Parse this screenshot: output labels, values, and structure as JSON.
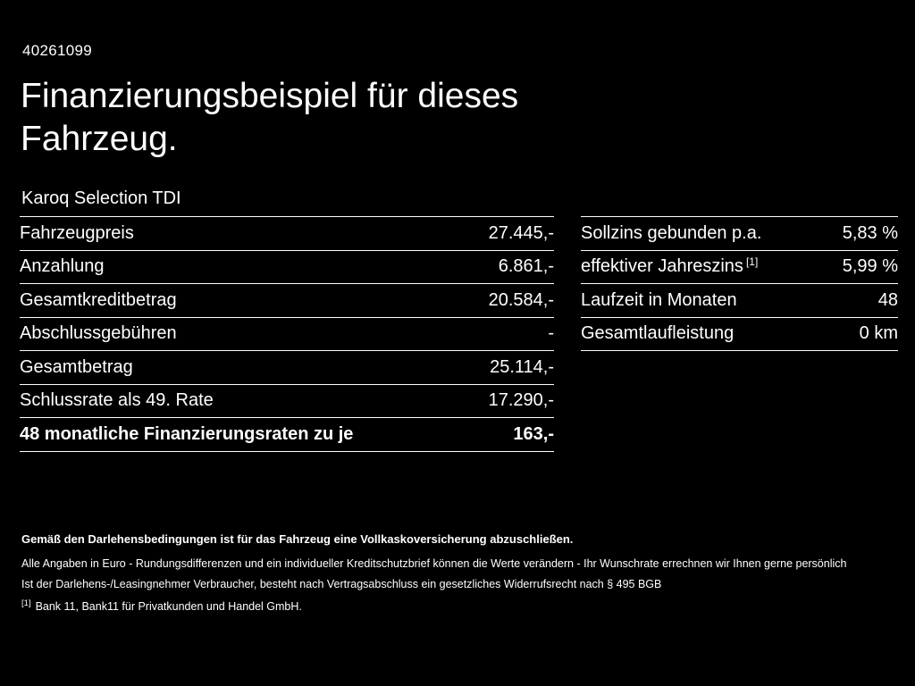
{
  "page": {
    "doc_id": "40261099",
    "title": "Finanzierungsbeispiel für dieses Fahrzeug.",
    "model": "Karoq Selection TDI"
  },
  "left_table": {
    "rows": [
      {
        "label": "Fahrzeugpreis",
        "value": "27.445,-"
      },
      {
        "label": "Anzahlung",
        "value": "6.861,-"
      },
      {
        "label": "Gesamtkreditbetrag",
        "value": "20.584,-"
      },
      {
        "label": "Abschlussgebühren",
        "value": "-"
      },
      {
        "label": "Gesamtbetrag",
        "value": "25.114,-"
      },
      {
        "label": "Schlussrate als 49. Rate",
        "value": "17.290,-"
      },
      {
        "label": "48 monatliche Finanzierungsraten zu je",
        "value": "163,-"
      }
    ]
  },
  "right_table": {
    "rows": [
      {
        "label": "Sollzins gebunden p.a.",
        "value": "5,83 %"
      },
      {
        "label": "effektiver Jahreszins",
        "sup": "[1]",
        "value": "5,99 %"
      },
      {
        "label": "Laufzeit in Monaten",
        "value": "48"
      },
      {
        "label": "Gesamtlaufleistung",
        "value": "0 km"
      }
    ]
  },
  "footer": {
    "insurance_note": "Gemäß den Darlehensbedingungen ist für das Fahrzeug eine Vollkaskoversicherung abzuschließen.",
    "note1": "Alle Angaben in Euro - Rundungsdifferenzen und ein individueller Kreditschutzbrief können die Werte verändern - Ihr Wunschrate errechnen wir Ihnen gerne persönlich",
    "note2": "Ist der Darlehens-/Leasingnehmer Verbraucher, besteht nach Vertragsabschluss ein gesetzliches Widerrufsrecht nach § 495 BGB",
    "footnote_marker": "[1]",
    "footnote_text": "Bank 11, Bank11 für Privatkunden und Handel GmbH."
  }
}
